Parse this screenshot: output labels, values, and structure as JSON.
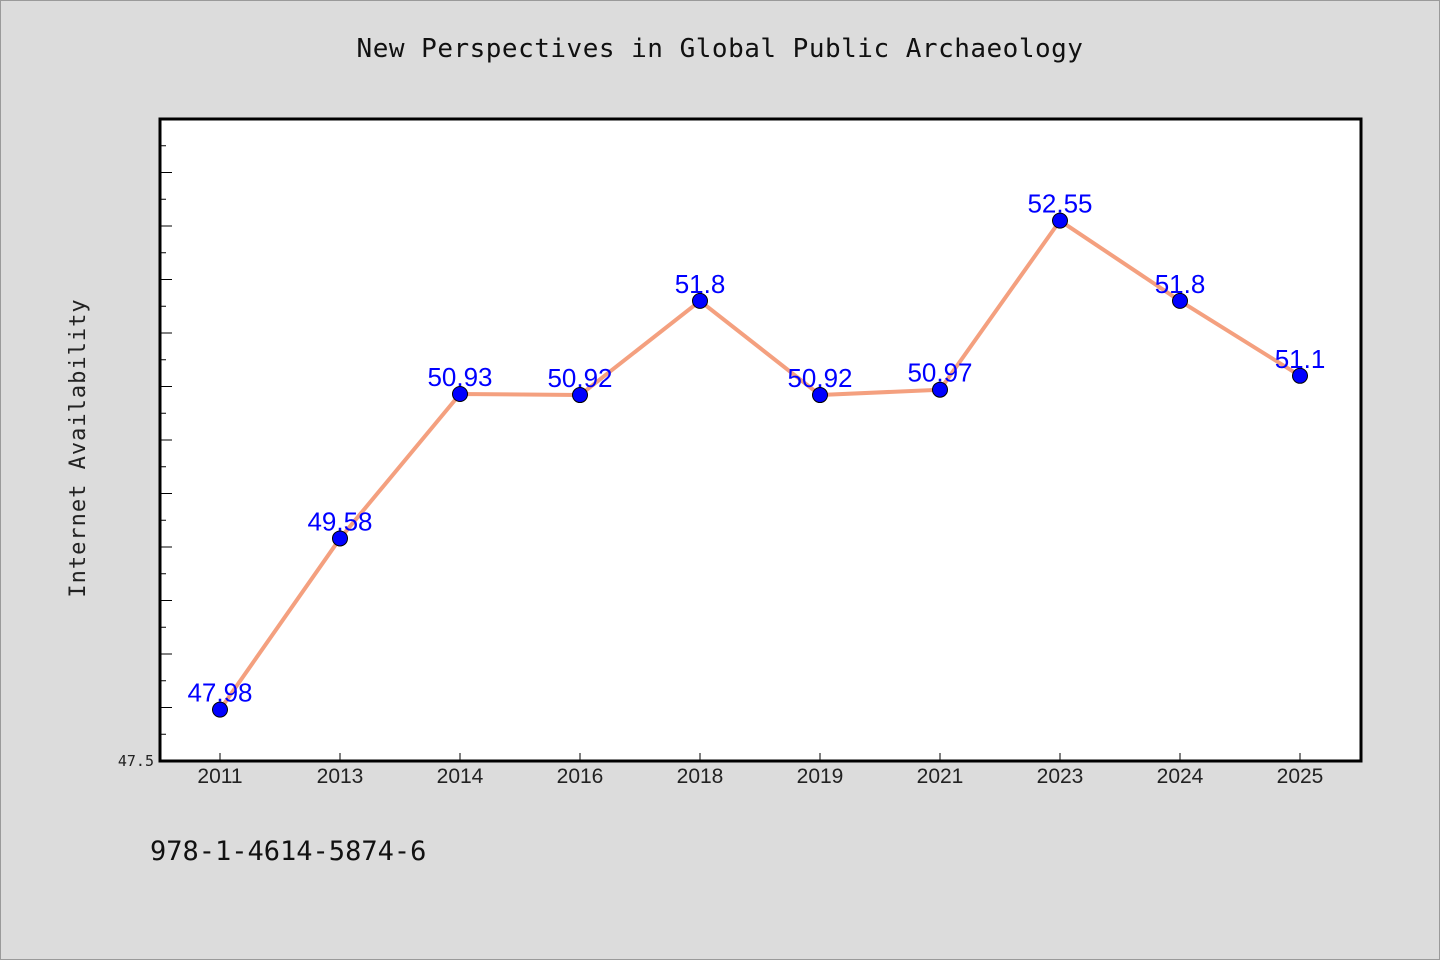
{
  "chart_data": {
    "type": "line",
    "title": "New Perspectives in Global Public Archaeology",
    "ylabel": "Internet Availability",
    "xlabel": "",
    "categories": [
      "2011",
      "2013",
      "2014",
      "2016",
      "2018",
      "2019",
      "2021",
      "2023",
      "2024",
      "2025"
    ],
    "series": [
      {
        "values": [
          47.98,
          49.58,
          50.93,
          50.92,
          51.8,
          50.92,
          50.97,
          52.55,
          51.8,
          51.1
        ],
        "labels": [
          "47.98",
          "49.58",
          "50.93",
          "50.92",
          "51.8",
          "50.92",
          "50.97",
          "52.55",
          "51.8",
          "51.1"
        ]
      }
    ],
    "ylim": [
      47.5,
      53.5
    ],
    "y_tick_labels": [
      "47.5"
    ],
    "grid": false,
    "colors": {
      "line": "#f4a07f",
      "marker": "#0000ff",
      "label": "#0000ff"
    }
  },
  "footer": {
    "isbn": "978-1-4614-5874-6"
  }
}
